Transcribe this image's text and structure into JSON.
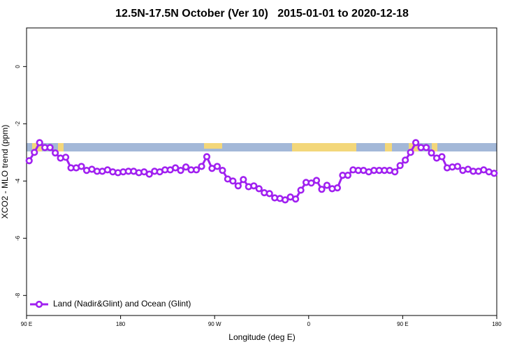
{
  "chart_data": {
    "type": "line",
    "title": "12.5N-17.5N October (Ver 10)   2015-01-01 to 2020-12-18",
    "x_label": "Longitude (deg E)",
    "y_label": "XCO2 - MLO trend (ppm)",
    "xlim": [
      90,
      540
    ],
    "xticks": [
      {
        "value": 90,
        "label": "90 E"
      },
      180,
      {
        "value": 270,
        "label": "90 W"
      },
      {
        "value": 360,
        "label": "0"
      },
      {
        "value": 450,
        "label": "90 E"
      },
      {
        "value": 540,
        "label": "180"
      }
    ],
    "ylim": [
      -8.7,
      1.35
    ],
    "yticks": [
      0,
      -2,
      -4,
      -6,
      -8
    ],
    "grid": false,
    "legend": "bottomleft",
    "x": [
      92.5,
      97.5,
      102.5,
      107.5,
      112.5,
      117.5,
      122.5,
      127.5,
      132.5,
      137.5,
      142.5,
      147.5,
      152.5,
      157.5,
      162.5,
      167.5,
      172.5,
      177.5,
      182.5,
      187.5,
      192.5,
      197.5,
      202.5,
      207.5,
      212.5,
      217.5,
      222.5,
      227.5,
      232.5,
      237.5,
      242.5,
      247.5,
      252.5,
      257.5,
      262.5,
      267.5,
      272.5,
      277.5,
      282.5,
      287.5,
      292.5,
      297.5,
      302.5,
      307.5,
      312.5,
      317.5,
      322.5,
      327.5,
      332.5,
      337.5,
      342.5,
      347.5,
      352.5,
      357.5,
      362.5,
      367.5,
      372.5,
      377.5,
      382.5,
      387.5,
      392.5,
      397.5,
      402.5,
      407.5,
      412.5,
      417.5,
      422.5,
      427.5,
      432.5,
      437.5,
      442.5,
      447.5,
      452.5,
      457.5,
      462.5,
      467.5,
      472.5,
      477.5,
      482.5,
      487.5,
      492.5,
      497.5,
      502.5,
      507.5,
      512.5,
      517.5,
      522.5,
      527.5,
      532.5,
      537.5
    ],
    "series": [
      {
        "name": "Land (Nadir&Glint) and Ocean (Glint)",
        "color": "#a020f0",
        "values": [
          -3.29,
          -3.0,
          -2.66,
          -2.83,
          -2.83,
          -3.02,
          -3.2,
          -3.17,
          -3.54,
          -3.54,
          -3.49,
          -3.63,
          -3.59,
          -3.66,
          -3.66,
          -3.61,
          -3.68,
          -3.71,
          -3.68,
          -3.66,
          -3.66,
          -3.71,
          -3.68,
          -3.76,
          -3.66,
          -3.68,
          -3.61,
          -3.61,
          -3.54,
          -3.63,
          -3.51,
          -3.61,
          -3.61,
          -3.49,
          -3.15,
          -3.56,
          -3.49,
          -3.63,
          -3.93,
          -4.0,
          -4.17,
          -3.95,
          -4.2,
          -4.17,
          -4.27,
          -4.41,
          -4.44,
          -4.59,
          -4.61,
          -4.66,
          -4.56,
          -4.63,
          -4.32,
          -4.05,
          -4.07,
          -3.98,
          -4.29,
          -4.15,
          -4.27,
          -4.24,
          -3.8,
          -3.8,
          -3.61,
          -3.63,
          -3.63,
          -3.68,
          -3.63,
          -3.63,
          -3.63,
          -3.63,
          -3.68,
          -3.46,
          -3.27,
          -3.0,
          -2.66,
          -2.83,
          -2.83,
          -3.02,
          -3.2,
          -3.15,
          -3.54,
          -3.51,
          -3.49,
          -3.63,
          -3.59,
          -3.66,
          -3.66,
          -3.61,
          -3.68,
          -3.73
        ]
      }
    ]
  }
}
